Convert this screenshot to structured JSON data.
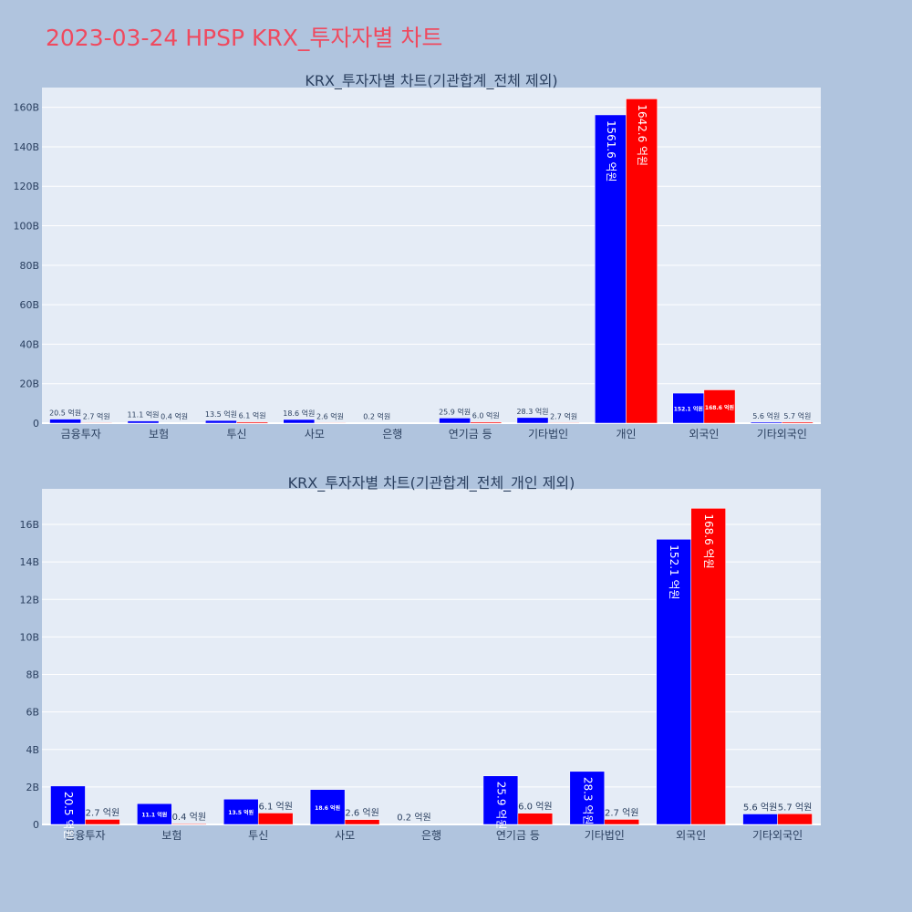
{
  "title": "2023-03-24 HPSP KRX_투자자별 차트",
  "colors": {
    "paper": "#b0c4de",
    "plot_bg": "#e5ecf6",
    "title": "#ef4a5f",
    "text": "#2a3f5f",
    "series_a": "#0000ff",
    "series_b": "#ff0000"
  },
  "chart_data": [
    {
      "type": "bar",
      "title": "KRX_투자자별 차트(기관합계_전체 제외)",
      "categories": [
        "금융투자",
        "보험",
        "투신",
        "사모",
        "은행",
        "연기금 등",
        "기타법인",
        "개인",
        "외국인",
        "기타외국인"
      ],
      "ylim": [
        0,
        170
      ],
      "yticks": [
        0,
        20,
        40,
        60,
        80,
        100,
        120,
        140,
        160
      ],
      "ytick_labels": [
        "0",
        "20B",
        "40B",
        "60B",
        "80B",
        "100B",
        "120B",
        "140B",
        "160B"
      ],
      "grid": true,
      "series": [
        {
          "values": [
            2.05,
            1.11,
            1.35,
            1.86,
            0.02,
            2.59,
            2.83,
            156.16,
            15.21,
            0.56
          ],
          "labels": [
            "20.5 억원",
            "11.1 억원",
            "13.5 억원",
            "18.6 억원",
            "0.2 억원",
            "25.9 억원",
            "28.3 억원",
            "1561.6 억원",
            "152.1 억원",
            "5.6 억원"
          ]
        },
        {
          "values": [
            0.27,
            0.04,
            0.61,
            0.26,
            null,
            0.6,
            0.27,
            164.26,
            16.86,
            0.57
          ],
          "labels": [
            "2.7 억원",
            "0.4 억원",
            "6.1 억원",
            "2.6 억원",
            "",
            "6.0 억원",
            "2.7 억원",
            "1642.6 억원",
            "168.6 억원",
            "5.7 억원"
          ]
        }
      ]
    },
    {
      "type": "bar",
      "title": "KRX_투자자별 차트(기관합계_전체_개인 제외)",
      "categories": [
        "금융투자",
        "보험",
        "투신",
        "사모",
        "은행",
        "연기금 등",
        "기타법인",
        "외국인",
        "기타외국인"
      ],
      "ylim": [
        0,
        17.9
      ],
      "yticks": [
        0,
        2,
        4,
        6,
        8,
        10,
        12,
        14,
        16
      ],
      "ytick_labels": [
        "0",
        "2B",
        "4B",
        "6B",
        "8B",
        "10B",
        "12B",
        "14B",
        "16B"
      ],
      "grid": true,
      "series": [
        {
          "values": [
            2.05,
            1.11,
            1.35,
            1.86,
            0.02,
            2.59,
            2.83,
            15.21,
            0.56
          ],
          "labels": [
            "20.5 억원",
            "11.1 억원",
            "13.5 억원",
            "18.6 억원",
            "0.2 억원",
            "25.9 억원",
            "28.3 억원",
            "152.1 억원",
            "5.6 억원"
          ]
        },
        {
          "values": [
            0.27,
            0.04,
            0.61,
            0.26,
            null,
            0.6,
            0.27,
            16.86,
            0.57
          ],
          "labels": [
            "2.7 억원",
            "0.4 억원",
            "6.1 억원",
            "2.6 억원",
            "",
            "6.0 억원",
            "2.7 억원",
            "168.6 억원",
            "5.7 억원"
          ]
        }
      ]
    }
  ]
}
